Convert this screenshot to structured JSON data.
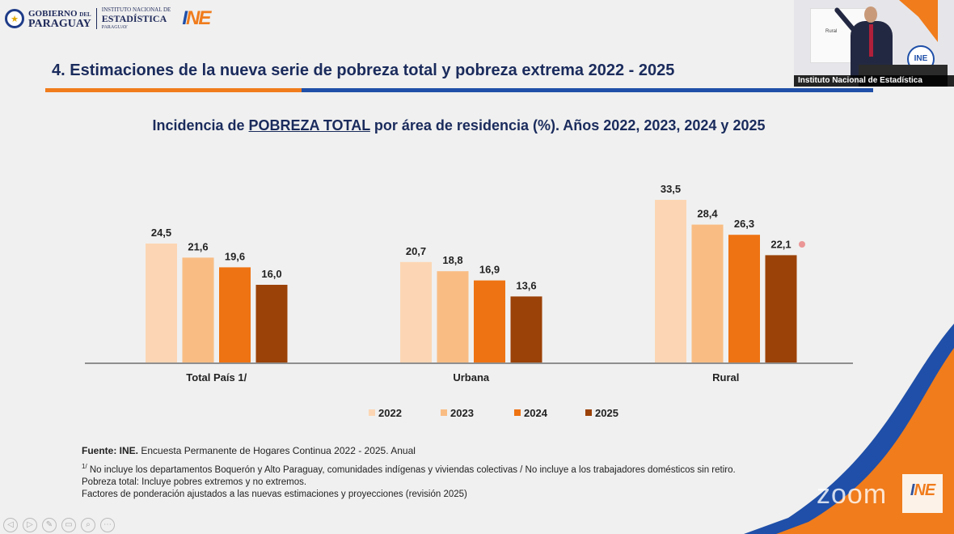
{
  "header": {
    "gobierno_del": "GOBIERNO",
    "gobierno_small": "DEL",
    "paraguay": "PARAGUAY",
    "instituto_line": "INSTITUTO NACIONAL DE",
    "estadistica": "ESTADÍSTICA",
    "paraguay_small": "PARAGUAY",
    "ine_i": "I",
    "ine_ne": "NE"
  },
  "slide": {
    "title": "4. Estimaciones de la nueva serie de pobreza total y pobreza extrema 2022 - 2025"
  },
  "chart_title": {
    "prefix": "Incidencia de ",
    "emphasis": "POBREZA TOTAL",
    "suffix": "  por área de residencia (%). Años 2022, 2023, 2024 y 2025"
  },
  "chart_data": {
    "type": "bar",
    "title": "Incidencia de POBREZA TOTAL por área de residencia (%). Años 2022, 2023, 2024 y 2025",
    "categories": [
      "Total País 1/",
      "Urbana",
      "Rural"
    ],
    "series": [
      {
        "name": "2022",
        "color": "#fcd6b4",
        "values": [
          24.5,
          20.7,
          33.5
        ]
      },
      {
        "name": "2023",
        "color": "#f9bd84",
        "values": [
          21.6,
          18.8,
          28.4
        ]
      },
      {
        "name": "2024",
        "color": "#ee7312",
        "values": [
          19.6,
          16.9,
          26.3
        ]
      },
      {
        "name": "2025",
        "color": "#9b4208",
        "values": [
          16.0,
          13.6,
          22.1
        ]
      }
    ],
    "data_labels": [
      [
        "24,5",
        "20,7",
        "33,5"
      ],
      [
        "21,6",
        "18,8",
        "28,4"
      ],
      [
        "19,6",
        "16,9",
        "26,3"
      ],
      [
        "16,0",
        "13,6",
        "22,1"
      ]
    ],
    "ylim": [
      0,
      40
    ],
    "xlabel": "",
    "ylabel": "",
    "grid": false,
    "legend_position": "bottom"
  },
  "footnotes": {
    "source_bold": "Fuente: INE.",
    "source_rest": " Encuesta Permanente de Hogares Continua 2022 - 2025. Anual",
    "note_marker": "1/",
    "note1": " No incluye los departamentos Boquerón y Alto Paraguay, comunidades indígenas y viviendas colectivas / No incluye a los trabajadores domésticos sin retiro.",
    "note2": "Pobreza total: Incluye pobres extremos y no extremos.",
    "note3": "Factores de ponderación ajustados a las nuevas estimaciones y proyecciones (revisión 2025)"
  },
  "video": {
    "caption": "Instituto Nacional de Estadística",
    "screen_text": "Rural",
    "badge_text": "INE"
  },
  "watermark": {
    "zoom": "zoom",
    "ine_i": "I",
    "ine_ne": "NE"
  },
  "controls": [
    "◁",
    "▷",
    "✎",
    "▭",
    "⌕",
    "⋯"
  ]
}
